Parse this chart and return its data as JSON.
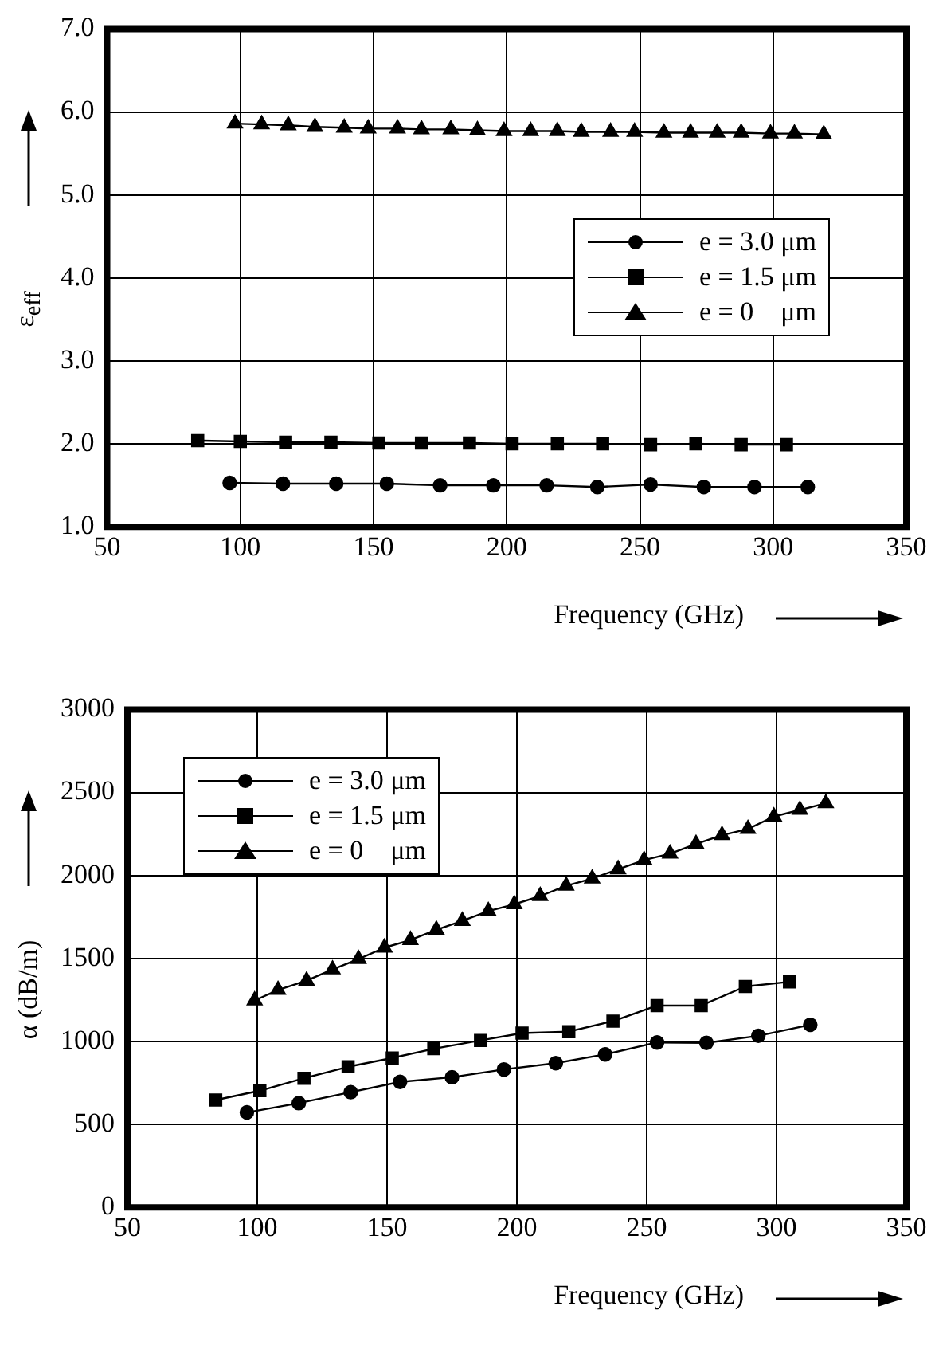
{
  "chart_data": [
    {
      "type": "line",
      "xlabel": "Frequency (GHz)",
      "ylabel": "ε$_{eff}$",
      "xlim": [
        50,
        350
      ],
      "xticks": [
        50,
        100,
        150,
        200,
        250,
        300,
        350
      ],
      "ylim": [
        1,
        7
      ],
      "yticks": [
        {
          "value": 1,
          "label": "1.0"
        },
        {
          "value": 2,
          "label": "2.0"
        },
        {
          "value": 3,
          "label": "3.0"
        },
        {
          "value": 4,
          "label": "4.0"
        },
        {
          "value": 5,
          "label": "5.0"
        },
        {
          "value": 6,
          "label": "6.0"
        },
        {
          "value": 7,
          "label": "7.0"
        }
      ],
      "grid": true,
      "legend": "right",
      "series": [
        {
          "name": "e = 3.0 μm",
          "color": "#000000",
          "marker": "circle",
          "x": [
            96,
            116,
            136,
            155,
            175,
            195,
            215,
            234,
            254,
            274,
            293,
            313
          ],
          "values": [
            1.53,
            1.52,
            1.52,
            1.52,
            1.5,
            1.5,
            1.5,
            1.48,
            1.51,
            1.48,
            1.48,
            1.48
          ]
        },
        {
          "name": "e = 1.5 μm",
          "color": "#000000",
          "marker": "square",
          "x": [
            84,
            100,
            117,
            134,
            152,
            168,
            186,
            202,
            219,
            236,
            254,
            271,
            288,
            305
          ],
          "values": [
            2.04,
            2.03,
            2.02,
            2.02,
            2.01,
            2.01,
            2.01,
            2.0,
            2.0,
            2.0,
            1.99,
            2.0,
            1.99,
            1.99
          ]
        },
        {
          "name": "e = 0    μm",
          "color": "#000000",
          "marker": "triangle",
          "x": [
            98,
            108,
            118,
            128,
            139,
            148,
            159,
            168,
            179,
            189,
            199,
            209,
            219,
            228,
            239,
            248,
            259,
            269,
            279,
            288,
            299,
            308,
            319
          ],
          "values": [
            5.86,
            5.85,
            5.84,
            5.82,
            5.81,
            5.8,
            5.8,
            5.79,
            5.79,
            5.78,
            5.77,
            5.77,
            5.77,
            5.76,
            5.76,
            5.76,
            5.75,
            5.75,
            5.75,
            5.75,
            5.74,
            5.74,
            5.73
          ]
        }
      ]
    },
    {
      "type": "line",
      "xlabel": "Frequency (GHz)",
      "ylabel": "α (dB/m)",
      "xlim": [
        50,
        350
      ],
      "xticks": [
        50,
        100,
        150,
        200,
        250,
        300,
        350
      ],
      "ylim": [
        0,
        3000
      ],
      "yticks": [
        0,
        500,
        1000,
        1500,
        2000,
        2500,
        3000
      ],
      "grid": true,
      "legend": "top left",
      "series": [
        {
          "name": "e = 3.0 μm",
          "color": "#000000",
          "marker": "circle",
          "x": [
            96,
            116,
            136,
            155,
            175,
            195,
            215,
            234,
            254,
            273,
            293,
            313
          ],
          "values": [
            572,
            628,
            694,
            756,
            784,
            831,
            869,
            922,
            994,
            991,
            1034,
            1100
          ]
        },
        {
          "name": "e = 1.5 μm",
          "color": "#000000",
          "marker": "square",
          "x": [
            84,
            101,
            118,
            135,
            152,
            168,
            186,
            202,
            220,
            237,
            254,
            271,
            288,
            305
          ],
          "values": [
            647,
            703,
            778,
            847,
            900,
            956,
            1006,
            1050,
            1059,
            1122,
            1216,
            1216,
            1331,
            1359
          ]
        },
        {
          "name": "e = 0    μm",
          "color": "#000000",
          "marker": "triangle",
          "x": [
            99,
            108,
            119,
            129,
            139,
            149,
            159,
            169,
            179,
            189,
            199,
            209,
            219,
            229,
            239,
            249,
            259,
            269,
            279,
            289,
            299,
            309,
            319
          ],
          "values": [
            1247,
            1310,
            1366,
            1434,
            1496,
            1565,
            1611,
            1673,
            1726,
            1785,
            1826,
            1876,
            1938,
            1981,
            2037,
            2093,
            2131,
            2190,
            2243,
            2280,
            2355,
            2395,
            2435
          ]
        }
      ]
    }
  ]
}
